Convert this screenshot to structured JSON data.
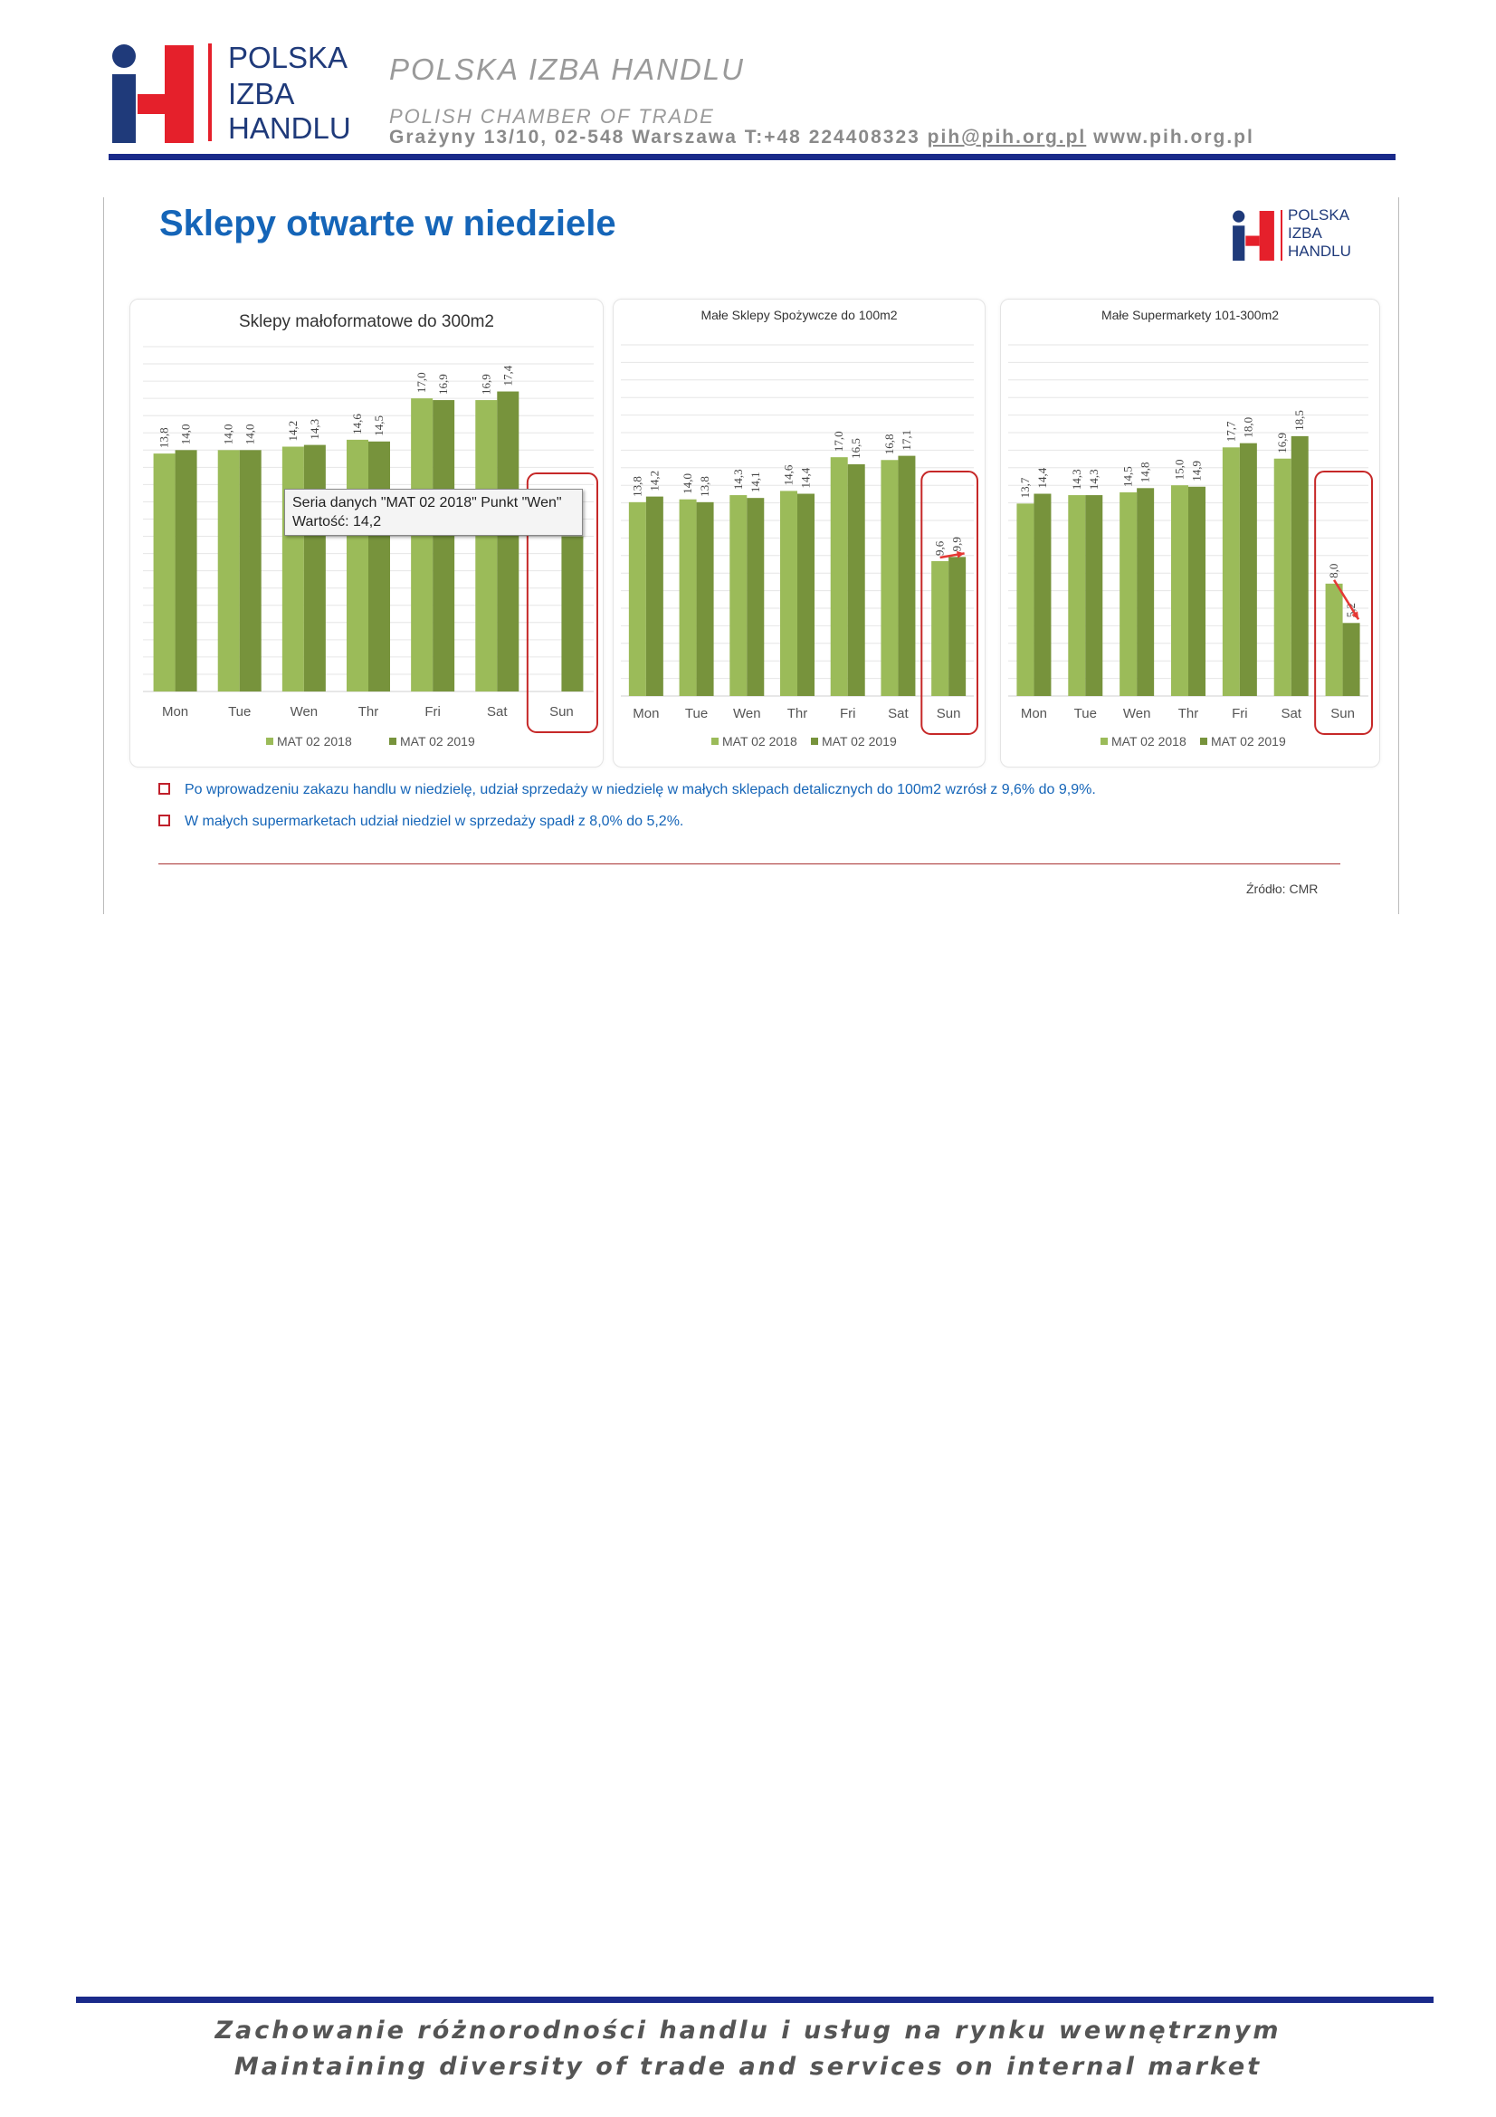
{
  "letterhead": {
    "logo_words": [
      "POLSKA",
      "IZBA",
      "HANDLU"
    ],
    "org_name": "POLSKA IZBA HANDLU",
    "org_sub": "POLISH CHAMBER OF TRADE",
    "address_prefix": "Grażyny 13/10, 02-548 Warszawa T:+48 224408323 ",
    "email": "pih@pih.org.pl",
    "website": " www.pih.org.pl",
    "colors": {
      "navy": "#1f3a7a",
      "red": "#e5202b",
      "rule": "#1a2a8a"
    }
  },
  "slide": {
    "title": "Sklepy otwarte w niedziele",
    "logo_words": [
      "POLSKA",
      "IZBA",
      "HANDLU"
    ],
    "tooltip": {
      "line1": "Seria danych \"MAT 02 2018\" Punkt \"Wen\"",
      "line2": "Wartość: 14,2"
    },
    "bullets": [
      "Po wprowadzeniu zakazu  handlu w niedzielę, udział sprzedaży  w niedzielę w małych sklepach detalicznych  do 100m2 wzrósł z 9,6% do 9,9%.",
      "W małych  supermarketach udział niedziel w sprzedaży  spadł z 8,0% do 5,2%."
    ],
    "source": "Źródło: CMR"
  },
  "chart_data": [
    {
      "type": "bar",
      "title": "Sklepy małoformatowe  do 300m2",
      "categories": [
        "Mon",
        "Tue",
        "Wen",
        "Thr",
        "Fri",
        "Sat",
        "Sun"
      ],
      "series": [
        {
          "name": "MAT 02 2018",
          "values": [
            13.8,
            14.0,
            14.2,
            14.6,
            17.0,
            16.9,
            null
          ],
          "color": "#9bbb59"
        },
        {
          "name": "MAT 02 2019",
          "values": [
            14.0,
            14.0,
            14.3,
            14.5,
            16.9,
            17.4,
            9.0
          ],
          "color": "#77933c"
        }
      ],
      "labels": [
        [
          "13,8",
          "14,0",
          "14,2",
          "14,6",
          "17,0",
          "16,9",
          ""
        ],
        [
          "14,0",
          "14,0",
          "14,3",
          "14,5",
          "16,9",
          "17,4",
          ""
        ]
      ],
      "ylim": [
        0,
        20
      ],
      "legend": "bottom",
      "grid": true,
      "highlight_category": "Sun"
    },
    {
      "type": "bar",
      "title": "Małe Sklepy Spożywcze do 100m2",
      "categories": [
        "Mon",
        "Tue",
        "Wen",
        "Thr",
        "Fri",
        "Sat",
        "Sun"
      ],
      "series": [
        {
          "name": "MAT 02 2018",
          "values": [
            13.8,
            14.0,
            14.3,
            14.6,
            17.0,
            16.8,
            9.6
          ],
          "color": "#9bbb59"
        },
        {
          "name": "MAT 02 2019",
          "values": [
            14.2,
            13.8,
            14.1,
            14.4,
            16.5,
            17.1,
            9.9
          ],
          "color": "#77933c"
        }
      ],
      "labels": [
        [
          "13,8",
          "14,0",
          "14,3",
          "14,6",
          "17,0",
          "16,8",
          "9,6"
        ],
        [
          "14,2",
          "13,8",
          "14,1",
          "14,4",
          "16,5",
          "17,1",
          "9,9"
        ]
      ],
      "ylim": [
        0,
        25
      ],
      "legend": "bottom",
      "grid": true,
      "highlight_category": "Sun"
    },
    {
      "type": "bar",
      "title": "Małe Supermarkety 101-300m2",
      "categories": [
        "Mon",
        "Tue",
        "Wen",
        "Thr",
        "Fri",
        "Sat",
        "Sun"
      ],
      "series": [
        {
          "name": "MAT 02 2018",
          "values": [
            13.7,
            14.3,
            14.5,
            15.0,
            17.7,
            16.9,
            8.0
          ],
          "color": "#9bbb59"
        },
        {
          "name": "MAT 02 2019",
          "values": [
            14.4,
            14.3,
            14.8,
            14.9,
            18.0,
            18.5,
            5.2
          ],
          "color": "#77933c"
        }
      ],
      "labels": [
        [
          "13,7",
          "14,3",
          "14,5",
          "15,0",
          "17,7",
          "16,9",
          "8,0"
        ],
        [
          "14,4",
          "14,3",
          "14,8",
          "14,9",
          "18,0",
          "18,5",
          "5,2"
        ]
      ],
      "ylim": [
        0,
        25
      ],
      "legend": "bottom",
      "grid": true,
      "highlight_category": "Sun"
    }
  ],
  "footer": {
    "line1": "Zachowanie różnorodności  handlu i usług  na rynku wewnętrznym",
    "line2": "Maintaining diversity of trade and services on internal market"
  }
}
